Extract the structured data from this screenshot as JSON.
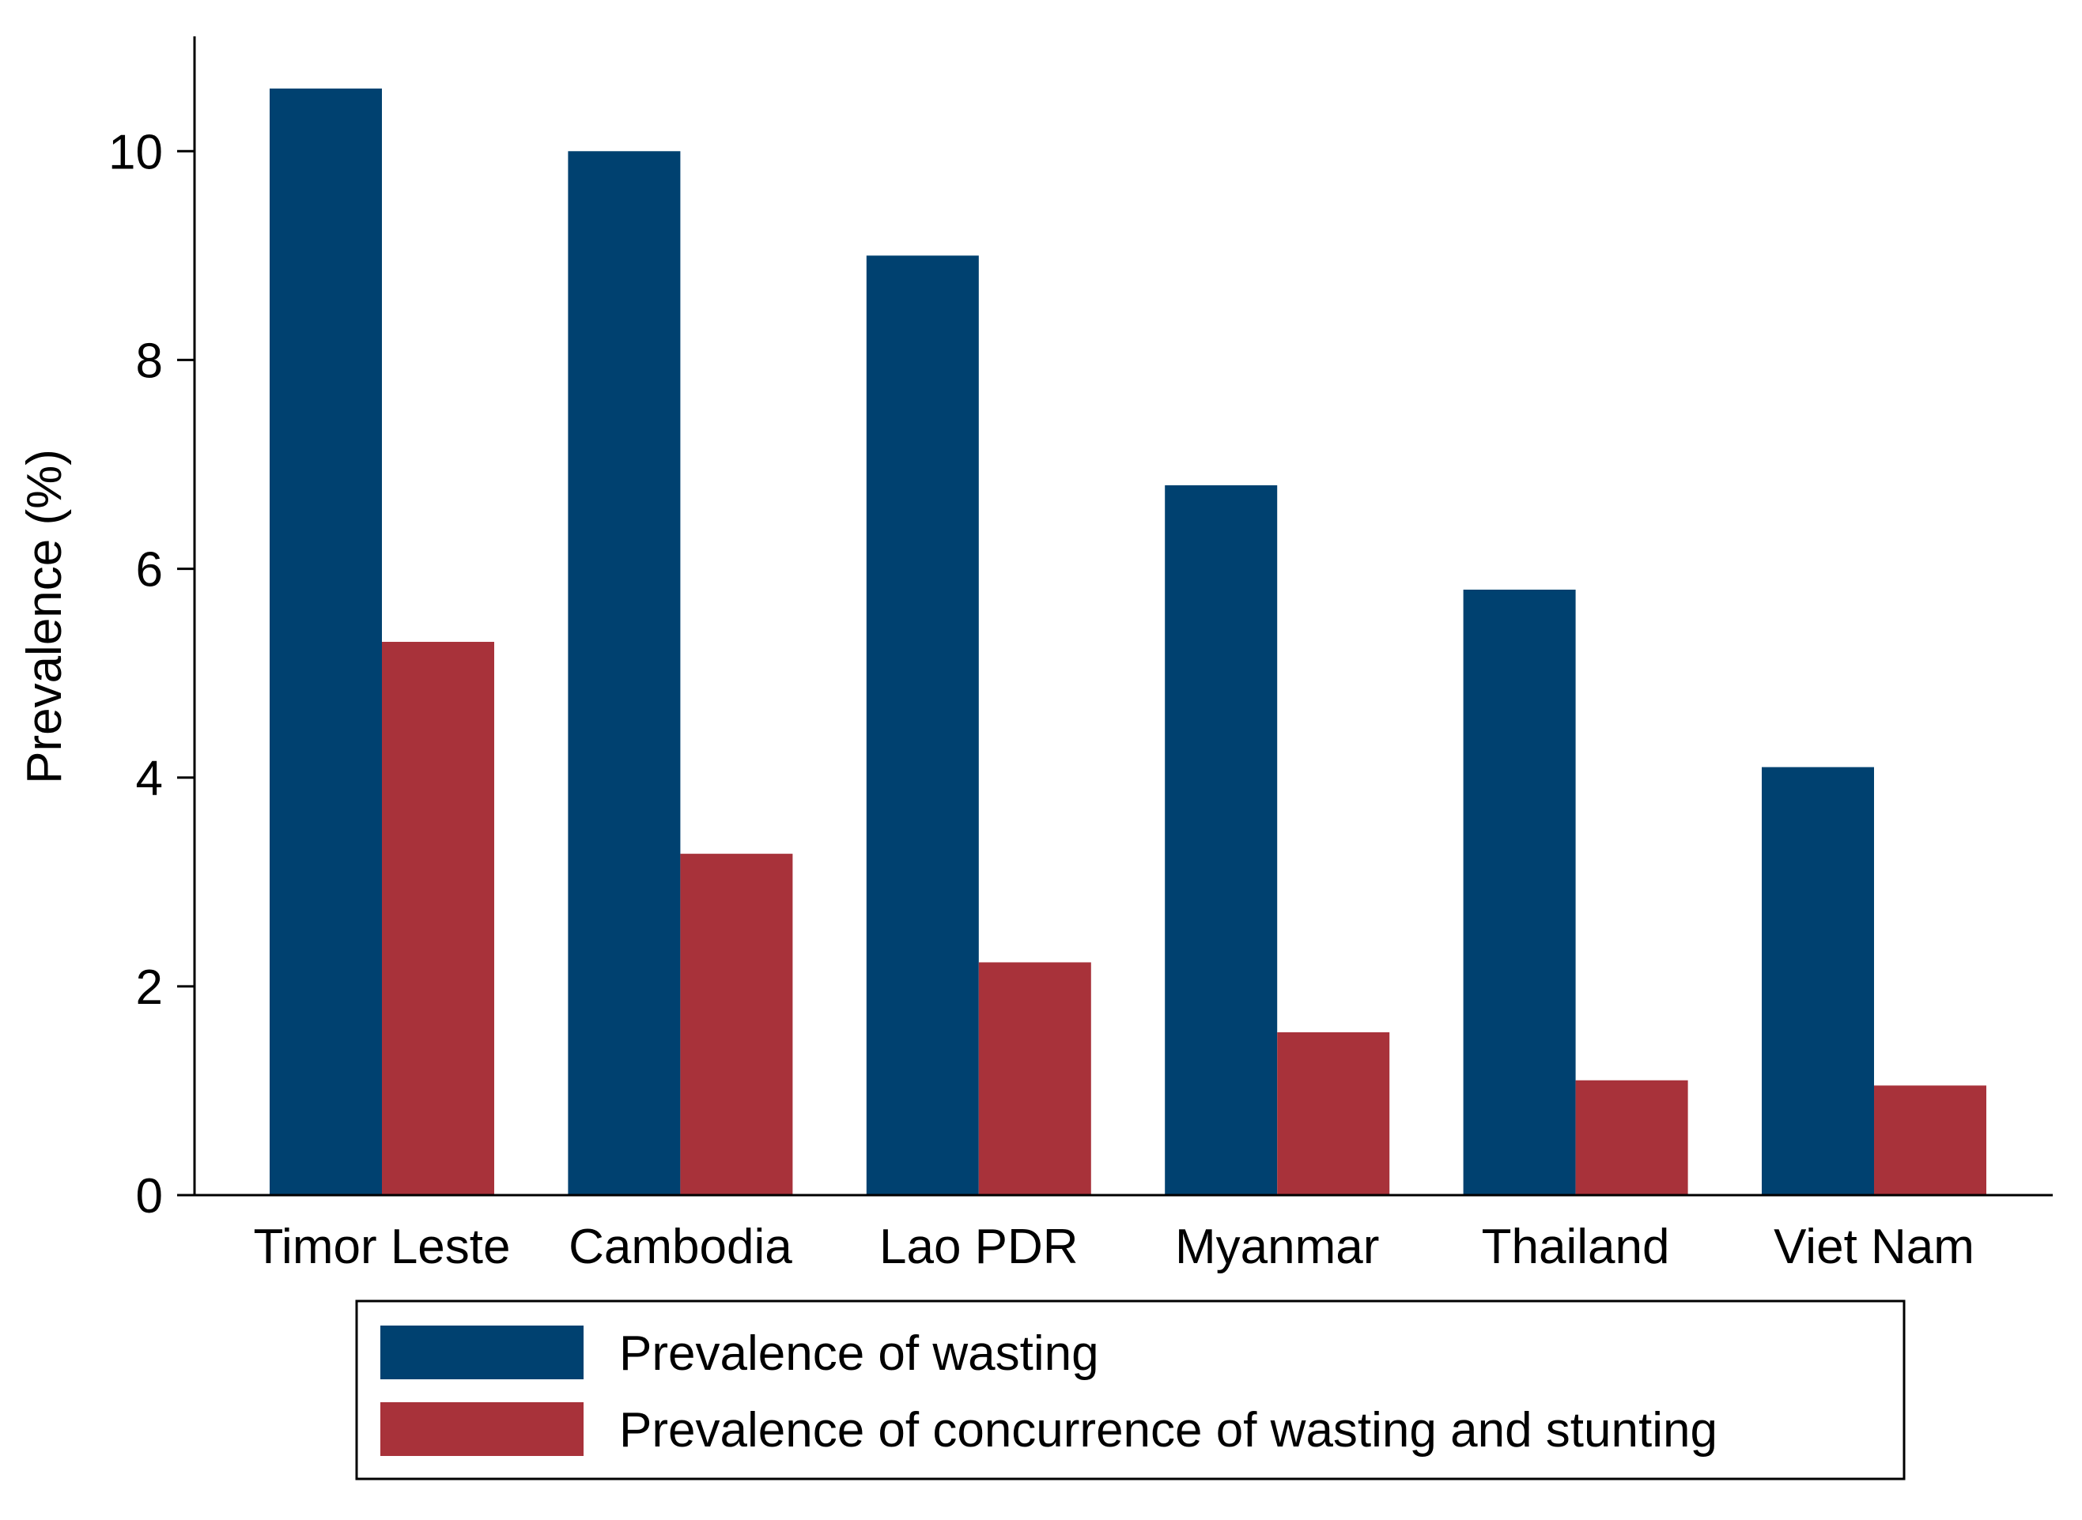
{
  "chart_data": {
    "type": "bar",
    "title": "",
    "xlabel": "",
    "ylabel": "Prevalence (%)",
    "ylim": [
      0,
      11.1
    ],
    "yticks": [
      0,
      2,
      4,
      6,
      8,
      10
    ],
    "grid": false,
    "legend_position": "bottom",
    "categories": [
      "Timor Leste",
      "Cambodia",
      "Lao PDR",
      "Myanmar",
      "Thailand",
      "Viet Nam"
    ],
    "series": [
      {
        "name": "Prevalence of wasting",
        "color": "#004170",
        "values": [
          10.6,
          10.0,
          9.0,
          6.8,
          5.8,
          4.1
        ]
      },
      {
        "name": "Prevalence of concurrence of wasting and stunting",
        "color": "#A8323A",
        "values": [
          5.3,
          3.27,
          2.23,
          1.56,
          1.1,
          1.05
        ]
      }
    ]
  }
}
